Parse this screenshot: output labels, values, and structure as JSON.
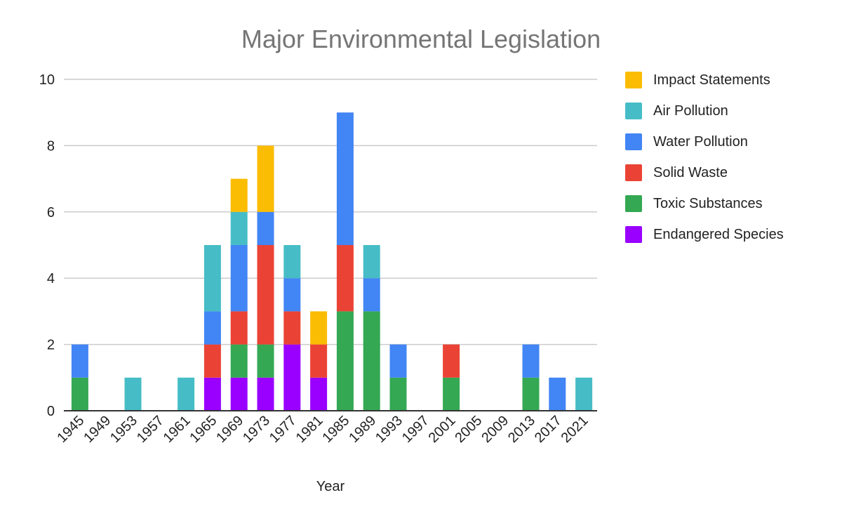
{
  "chart_data": {
    "type": "bar",
    "stacked": true,
    "title": "Major Environmental Legislation",
    "xlabel": "Year",
    "ylabel": "",
    "ylim": [
      0,
      10
    ],
    "yticks": [
      "0",
      "2",
      "4",
      "6",
      "8",
      "10"
    ],
    "grid": true,
    "legend_position": "right",
    "categories": [
      "1945",
      "1949",
      "1953",
      "1957",
      "1961",
      "1965",
      "1969",
      "1973",
      "1977",
      "1981",
      "1985",
      "1989",
      "1993",
      "1997",
      "2001",
      "2005",
      "2009",
      "2013",
      "2017",
      "2021"
    ],
    "series": [
      {
        "name": "Endangered Species",
        "color": "#9900ff",
        "values": [
          0,
          0,
          0,
          0,
          0,
          1,
          1,
          1,
          2,
          1,
          0,
          0,
          0,
          0,
          0,
          0,
          0,
          0,
          0,
          0
        ]
      },
      {
        "name": "Toxic Substances",
        "color": "#34a853",
        "values": [
          1,
          0,
          0,
          0,
          0,
          0,
          1,
          1,
          0,
          0,
          3,
          3,
          1,
          0,
          1,
          0,
          0,
          1,
          0,
          0
        ]
      },
      {
        "name": "Solid Waste",
        "color": "#ea4335",
        "values": [
          0,
          0,
          0,
          0,
          0,
          1,
          1,
          3,
          1,
          1,
          2,
          0,
          0,
          0,
          1,
          0,
          0,
          0,
          0,
          0
        ]
      },
      {
        "name": "Water Pollution",
        "color": "#4285f4",
        "values": [
          1,
          0,
          0,
          0,
          0,
          1,
          2,
          1,
          1,
          0,
          4,
          1,
          1,
          0,
          0,
          0,
          0,
          1,
          1,
          0
        ]
      },
      {
        "name": "Air Pollution",
        "color": "#46bdc6",
        "values": [
          0,
          0,
          1,
          0,
          1,
          2,
          1,
          0,
          1,
          0,
          0,
          1,
          0,
          0,
          0,
          0,
          0,
          0,
          0,
          1
        ]
      },
      {
        "name": "Impact Statements",
        "color": "#fbbc04",
        "values": [
          0,
          0,
          0,
          0,
          0,
          0,
          1,
          2,
          0,
          1,
          0,
          0,
          0,
          0,
          0,
          0,
          0,
          0,
          0,
          0
        ]
      }
    ],
    "legend_order": [
      "Impact Statements",
      "Air Pollution",
      "Water Pollution",
      "Solid Waste",
      "Toxic Substances",
      "Endangered Species"
    ]
  }
}
